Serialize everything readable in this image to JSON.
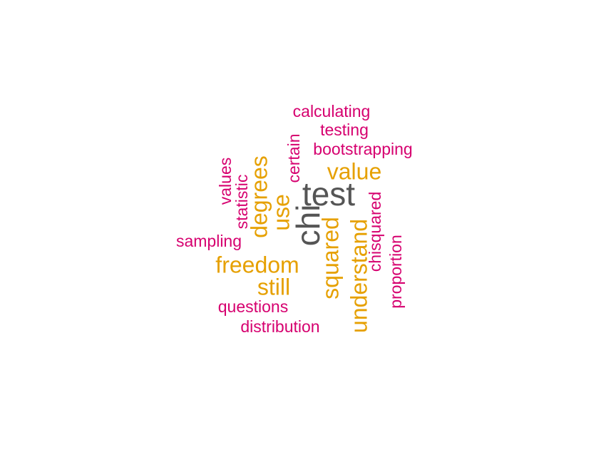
{
  "colors": {
    "high": "#555555",
    "mid": "#e6a000",
    "low": "#d6006f"
  },
  "words": [
    {
      "text": "test",
      "weight": "high"
    },
    {
      "text": "chi",
      "weight": "high"
    },
    {
      "text": "value",
      "weight": "mid"
    },
    {
      "text": "degrees",
      "weight": "mid"
    },
    {
      "text": "use",
      "weight": "mid"
    },
    {
      "text": "squared",
      "weight": "mid"
    },
    {
      "text": "understand",
      "weight": "mid"
    },
    {
      "text": "freedom",
      "weight": "mid"
    },
    {
      "text": "still",
      "weight": "mid"
    },
    {
      "text": "calculating",
      "weight": "low"
    },
    {
      "text": "testing",
      "weight": "low"
    },
    {
      "text": "bootstrapping",
      "weight": "low"
    },
    {
      "text": "certain",
      "weight": "low"
    },
    {
      "text": "values",
      "weight": "low"
    },
    {
      "text": "statistic",
      "weight": "low"
    },
    {
      "text": "chisquared",
      "weight": "low"
    },
    {
      "text": "sampling",
      "weight": "low"
    },
    {
      "text": "proportion",
      "weight": "low"
    },
    {
      "text": "questions",
      "weight": "low"
    },
    {
      "text": "distribution",
      "weight": "low"
    }
  ]
}
